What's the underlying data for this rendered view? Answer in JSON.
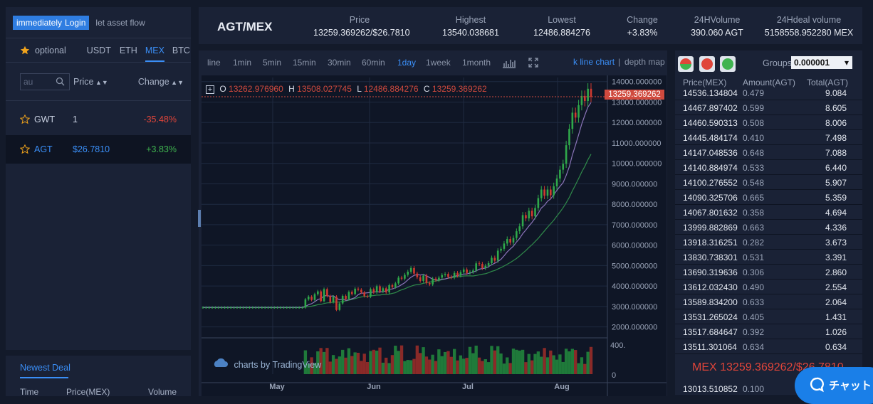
{
  "left": {
    "login_prefix": "immediately",
    "login_label": "Login",
    "asset_flow": "let asset flow",
    "tabs": [
      "optional",
      "USDT",
      "ETH",
      "MEX",
      "BTC"
    ],
    "active_tab": "MEX",
    "search_placeholder": "au",
    "col_price": "Price",
    "col_change": "Change",
    "markets": [
      {
        "name": "GWT",
        "price": "1",
        "change": "-35.48%",
        "change_color": "#e0453a",
        "price_color": "#c8d0e0"
      },
      {
        "name": "AGT",
        "price": "$26.7810",
        "change": "+3.83%",
        "change_color": "#3fb34f",
        "price_color": "#3a8ef6"
      }
    ],
    "newest_title": "Newest Deal",
    "newest_cols": [
      "Time",
      "Price(MEX)",
      "Volume"
    ]
  },
  "header": {
    "pair": "AGT/MEX",
    "stats": [
      {
        "label": "Price",
        "value": "13259.369262/$26.7810"
      },
      {
        "label": "Highest",
        "value": "13540.038681"
      },
      {
        "label": "Lowest",
        "value": "12486.884276"
      },
      {
        "label": "Change",
        "value": "+3.83%"
      },
      {
        "label": "24HVolume",
        "value": "390.060 AGT"
      },
      {
        "label": "24Hdeal volume",
        "value": "5158558.952280 MEX"
      }
    ]
  },
  "toolbar": {
    "intervals": [
      "line",
      "1min",
      "5min",
      "15min",
      "30min",
      "60min",
      "1day",
      "1week",
      "1month"
    ],
    "active_interval": "1day",
    "kline": "k line chart",
    "sep": "|",
    "depth": "depth map"
  },
  "ohlc": {
    "o_label": "O",
    "o": "13262.976960",
    "h_label": "H",
    "h": "13508.027745",
    "l_label": "L",
    "l": "12486.884276",
    "c_label": "C",
    "c": "13259.369262"
  },
  "price_tag": "13259.369262",
  "watermark": "charts by TradingView",
  "chart_data": {
    "type": "candlestick",
    "price_ticks": [
      "14000.000000",
      "13000.000000",
      "12000.000000",
      "11000.000000",
      "10000.000000",
      "9000.000000",
      "8000.000000",
      "7000.000000",
      "6000.000000",
      "5000.000000",
      "4000.000000",
      "3000.000000",
      "2000.000000"
    ],
    "ylim": [
      1500,
      14200
    ],
    "x_labels": [
      "May",
      "Jun",
      "Jul",
      "Aug"
    ],
    "volume_ticks": [
      "400.",
      "0"
    ],
    "last_price": 13259.369262,
    "series": [
      {
        "name": "close",
        "values": [
          2950,
          2950,
          2950,
          2950,
          2950,
          2950,
          2950,
          2950,
          2950,
          2950,
          2950,
          2950,
          2950,
          2950,
          2950,
          2950,
          2950,
          2950,
          2950,
          2950,
          2950,
          2950,
          2950,
          2950,
          2950,
          2950,
          2950,
          2950,
          2950,
          2950,
          2950,
          2950,
          2950,
          3350,
          3480,
          3320,
          3600,
          3740,
          3260,
          3850,
          3510,
          3210,
          3480,
          2830,
          3150,
          3520,
          3360,
          3710,
          3610,
          3870,
          3820,
          3690,
          3510,
          3480,
          3850,
          3690,
          3990,
          3730,
          3890,
          3690,
          4040,
          3950,
          4130,
          4410,
          4360,
          4550,
          4700,
          4880,
          4610,
          4430,
          4250,
          4510,
          4150,
          4080,
          4360,
          4290,
          4410,
          4540,
          4590,
          4450,
          4420,
          4640,
          4510,
          4680,
          4810,
          4640,
          4690,
          4760,
          5110,
          5080,
          4880,
          4990,
          5120,
          5380,
          5240,
          5730,
          5820,
          6080,
          6300,
          6130,
          6350,
          6680,
          6920,
          7470,
          7310,
          7680,
          7410,
          7820,
          8300,
          8720,
          8420,
          8720,
          8440,
          8880,
          9260,
          9690,
          9980,
          10890,
          11690,
          12480,
          12240,
          12850,
          13300,
          13050,
          13650,
          13259
        ]
      }
    ]
  },
  "orderbook": {
    "groups_label": "Groups",
    "group_value": "0.000001",
    "headers": [
      "Price(MEX)",
      "Amount(AGT)",
      "Total(AGT)"
    ],
    "asks": [
      [
        "14536.134804",
        "0.479",
        "9.084"
      ],
      [
        "14467.897402",
        "0.599",
        "8.605"
      ],
      [
        "14460.590313",
        "0.508",
        "8.006"
      ],
      [
        "14445.484174",
        "0.410",
        "7.498"
      ],
      [
        "14147.048536",
        "0.648",
        "7.088"
      ],
      [
        "14140.884974",
        "0.533",
        "6.440"
      ],
      [
        "14100.276552",
        "0.548",
        "5.907"
      ],
      [
        "14090.325706",
        "0.665",
        "5.359"
      ],
      [
        "14067.801632",
        "0.358",
        "4.694"
      ],
      [
        "13999.882869",
        "0.663",
        "4.336"
      ],
      [
        "13918.316251",
        "0.282",
        "3.673"
      ],
      [
        "13830.738301",
        "0.531",
        "3.391"
      ],
      [
        "13690.319636",
        "0.306",
        "2.860"
      ],
      [
        "13612.032430",
        "0.490",
        "2.554"
      ],
      [
        "13589.834200",
        "0.633",
        "2.064"
      ],
      [
        "13531.265024",
        "0.405",
        "1.431"
      ],
      [
        "13517.684647",
        "0.392",
        "1.026"
      ],
      [
        "13511.301064",
        "0.634",
        "0.634"
      ]
    ],
    "last_price": "MEX 13259.369262/$26.7810",
    "bids": [
      [
        "13013.510852",
        "0.100",
        ""
      ]
    ]
  },
  "chat_label": "チャット"
}
